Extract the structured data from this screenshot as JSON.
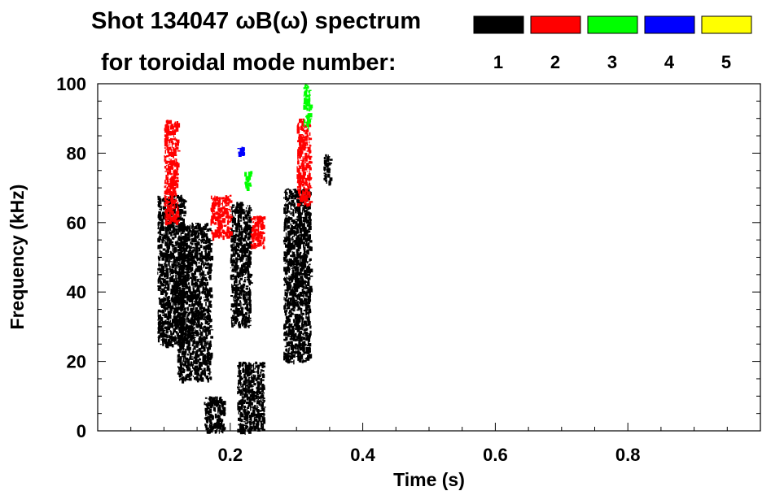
{
  "chart_data": {
    "type": "heatmap",
    "title_line1": "Shot 134047 ωB(ω) spectrum",
    "title_line2": "for toroidal mode number:",
    "xlabel": "Time (s)",
    "ylabel": "Frequency (kHz)",
    "xlim": [
      0.0,
      1.0
    ],
    "ylim": [
      0,
      100
    ],
    "x_ticks": [
      0.2,
      0.4,
      0.6,
      0.8
    ],
    "x_tick_labels": [
      "0.2",
      "0.4",
      "0.6",
      "0.8"
    ],
    "y_ticks": [
      0,
      20,
      40,
      60,
      80,
      100
    ],
    "y_tick_labels": [
      "0",
      "20",
      "40",
      "60",
      "80",
      "100"
    ],
    "legend": [
      {
        "label": "1",
        "color": "#000000"
      },
      {
        "label": "2",
        "color": "#ff0000"
      },
      {
        "label": "3",
        "color": "#00ff00"
      },
      {
        "label": "4",
        "color": "#0000ff"
      },
      {
        "label": "5",
        "color": "#ffff00"
      }
    ],
    "legend_placement": "top-right",
    "grid": false,
    "regions": [
      {
        "mode": "1",
        "t": [
          0.09,
          0.13
        ],
        "f": [
          25,
          68
        ]
      },
      {
        "mode": "1",
        "t": [
          0.12,
          0.17
        ],
        "f": [
          15,
          60
        ]
      },
      {
        "mode": "1",
        "t": [
          0.16,
          0.19
        ],
        "f": [
          0,
          10
        ]
      },
      {
        "mode": "1",
        "t": [
          0.21,
          0.25
        ],
        "f": [
          0,
          20
        ]
      },
      {
        "mode": "1",
        "t": [
          0.2,
          0.23
        ],
        "f": [
          30,
          66
        ]
      },
      {
        "mode": "1",
        "t": [
          0.28,
          0.32
        ],
        "f": [
          20,
          70
        ]
      },
      {
        "mode": "1",
        "t": [
          0.34,
          0.35
        ],
        "f": [
          72,
          80
        ]
      },
      {
        "mode": "2",
        "t": [
          0.1,
          0.12
        ],
        "f": [
          60,
          90
        ]
      },
      {
        "mode": "2",
        "t": [
          0.17,
          0.2
        ],
        "f": [
          56,
          68
        ]
      },
      {
        "mode": "2",
        "t": [
          0.23,
          0.25
        ],
        "f": [
          53,
          62
        ]
      },
      {
        "mode": "2",
        "t": [
          0.3,
          0.32
        ],
        "f": [
          65,
          90
        ]
      },
      {
        "mode": "3",
        "t": [
          0.31,
          0.32
        ],
        "f": [
          88,
          100
        ]
      },
      {
        "mode": "3",
        "t": [
          0.22,
          0.23
        ],
        "f": [
          70,
          75
        ]
      },
      {
        "mode": "4",
        "t": [
          0.21,
          0.22
        ],
        "f": [
          80,
          82
        ]
      }
    ]
  }
}
